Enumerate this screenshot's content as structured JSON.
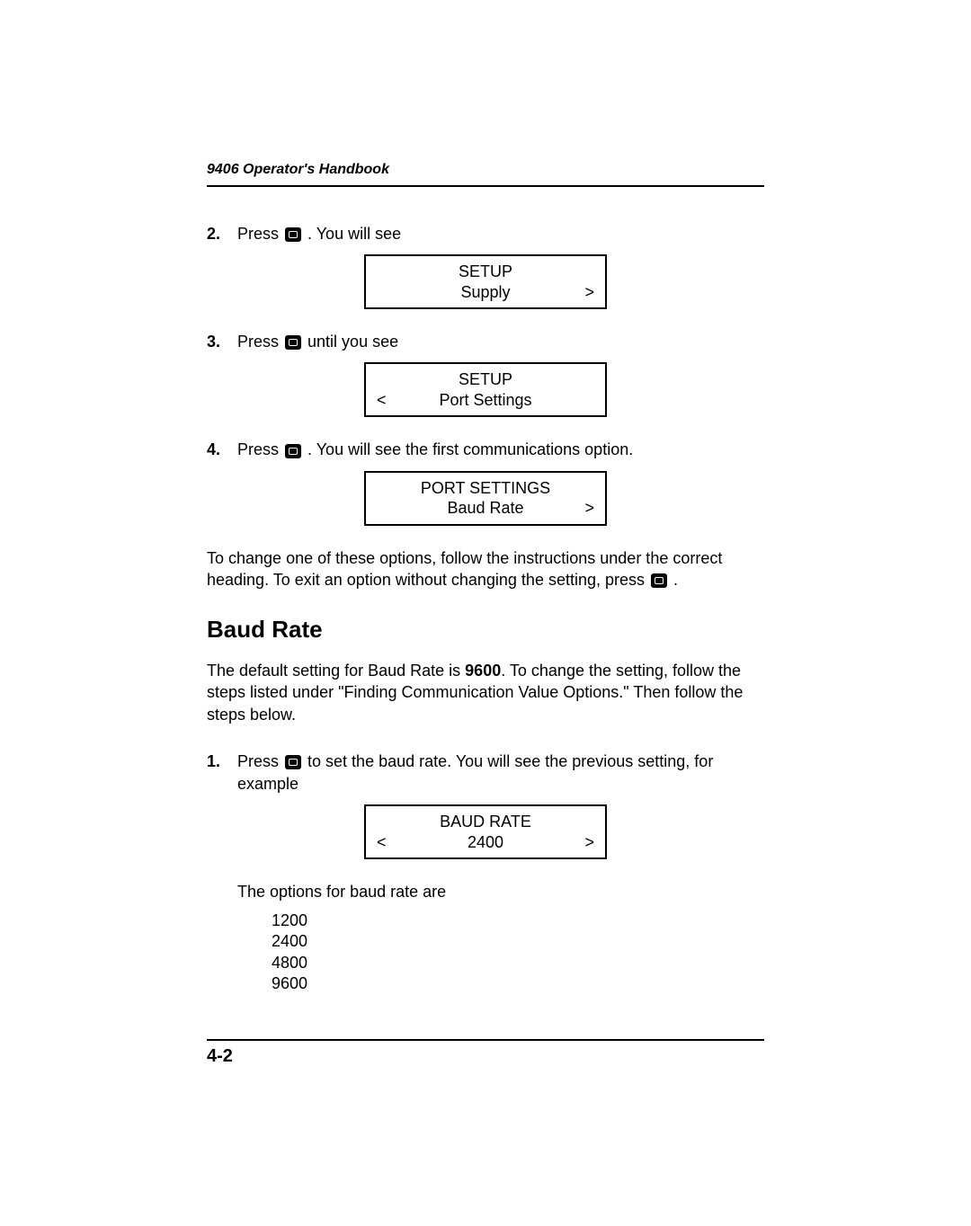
{
  "header": {
    "title": "9406 Operator's Handbook"
  },
  "steps": {
    "s2": {
      "num": "2.",
      "pre": "Press ",
      "post": " .  You will see"
    },
    "s3": {
      "num": "3.",
      "pre": "Press ",
      "post": "  until you see"
    },
    "s4": {
      "num": "4.",
      "pre": "Press ",
      "post": " .  You will see the first communications option."
    },
    "s1b": {
      "num": "1.",
      "pre": "Press ",
      "post": " to set the baud rate.  You will see the previous setting, for example"
    }
  },
  "lcd": {
    "l1": {
      "r1": "SETUP",
      "r2c": "Supply",
      "r2r": ">"
    },
    "l2": {
      "r1": "SETUP",
      "r2l": "<",
      "r2c": "Port Settings"
    },
    "l3": {
      "r1": "PORT SETTINGS",
      "r2c": "Baud Rate",
      "r2r": ">"
    },
    "l4": {
      "r1": "BAUD RATE",
      "r2l": "<",
      "r2c": "2400",
      "r2r": ">"
    }
  },
  "para1": "To change one of these options, follow the instructions under the correct heading.  To exit an option without changing the setting, press ",
  "para1_end": " .",
  "section": "Baud Rate",
  "para2a": "The default setting for Baud Rate is ",
  "para2_bold": "9600",
  "para2b": ".  To change the setting, follow the steps listed under \"Finding Communication Value Options.\"  Then follow the steps below.",
  "opts_intro": "The options for baud rate are",
  "opts": {
    "o1": "1200",
    "o2": "2400",
    "o3": "4800",
    "o4": "9600"
  },
  "pagenum": "4-2"
}
